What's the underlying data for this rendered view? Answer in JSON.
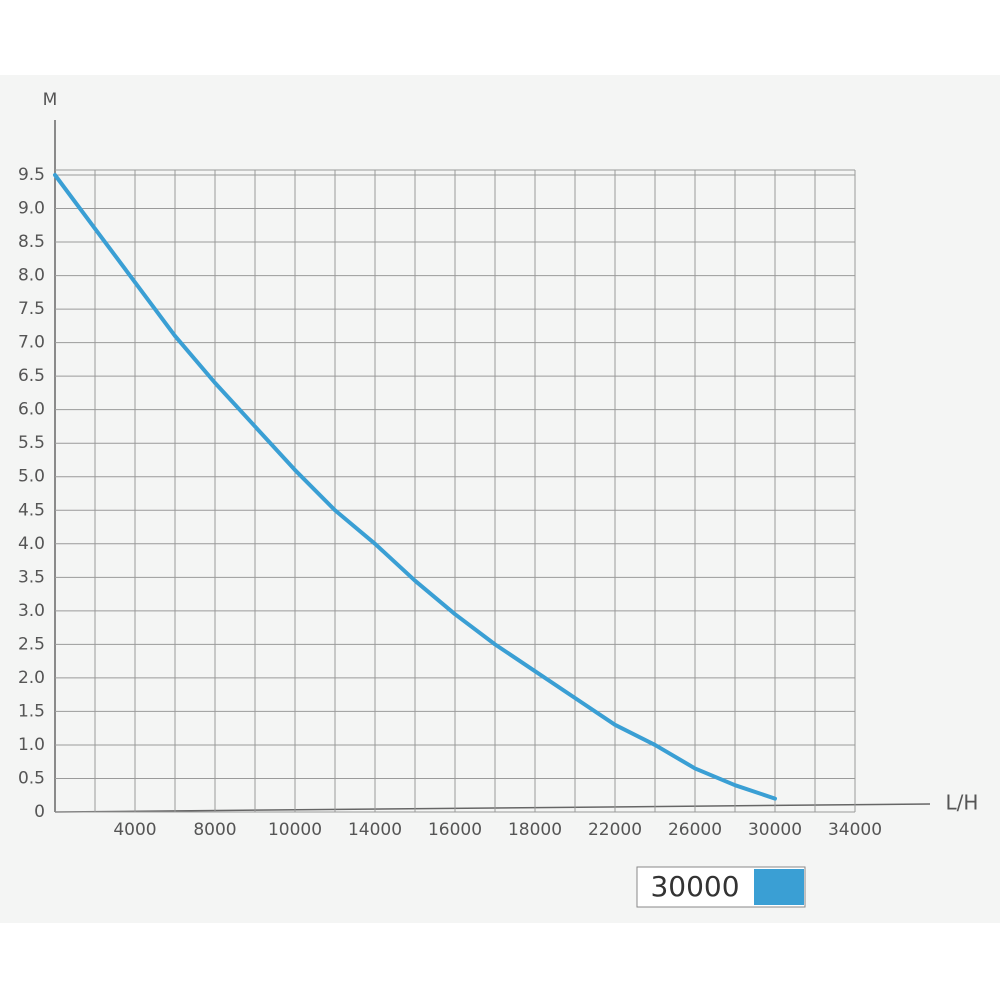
{
  "chart_data": {
    "type": "line",
    "x_label": "L/H",
    "y_label": "M",
    "categories": [
      null,
      null,
      "4000",
      null,
      "8000",
      null,
      "10000",
      null,
      "14000",
      null,
      "16000",
      null,
      "18000",
      null,
      "22000",
      null,
      "26000",
      null,
      "30000",
      null,
      "34000"
    ],
    "series": [
      {
        "name": "30000",
        "color": "#3a9fd4",
        "values": [
          9.5,
          8.7,
          7.9,
          7.1,
          6.4,
          5.75,
          5.1,
          4.5,
          4.0,
          3.45,
          2.95,
          2.5,
          2.1,
          1.7,
          1.3,
          1.0,
          0.65,
          0.4,
          0.2,
          null,
          null
        ]
      }
    ],
    "ylim": [
      0,
      9.5
    ],
    "yticks": [
      0,
      0.5,
      {
        "value": 1,
        "label": "1.0"
      },
      1.5,
      {
        "value": 2,
        "label": "2.0"
      },
      2.5,
      {
        "value": 3,
        "label": "3.0"
      },
      3.5,
      {
        "value": 4,
        "label": "4.0"
      },
      4.5,
      {
        "value": 5,
        "label": "5.0"
      },
      5.5,
      {
        "value": 6,
        "label": "6.0"
      },
      6.5,
      {
        "value": 7,
        "label": "7.0"
      },
      7.5,
      {
        "value": 8,
        "label": "8.0"
      },
      8.5,
      {
        "value": 9,
        "label": "9.0"
      },
      9.5
    ],
    "grid": true,
    "legend": "bottom-right"
  }
}
